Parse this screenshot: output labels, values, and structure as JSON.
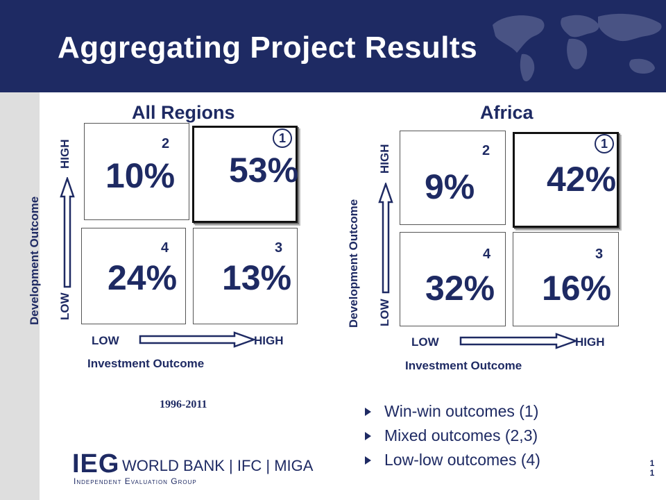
{
  "header": {
    "title": "Aggregating Project Results"
  },
  "panels": {
    "all_regions": {
      "title": "All Regions",
      "boxes": {
        "top_left": {
          "num": "2",
          "pct": "10%"
        },
        "top_right": {
          "circle": "1",
          "pct": "53%"
        },
        "bottom_left": {
          "num": "4",
          "pct": "24%"
        },
        "bottom_right": {
          "num": "3",
          "pct": "13%"
        }
      },
      "y_axis": {
        "title": "Development Outcome",
        "low": "LOW",
        "high": "HIGH"
      },
      "x_axis": {
        "title": "Investment Outcome",
        "low": "LOW",
        "high": "HIGH"
      },
      "years": "1996-2011"
    },
    "africa": {
      "title": "Africa",
      "boxes": {
        "top_left": {
          "num": "2",
          "pct": "9%"
        },
        "top_right": {
          "circle": "1",
          "pct": "42%"
        },
        "bottom_left": {
          "num": "4",
          "pct": "32%"
        },
        "bottom_right": {
          "num": "3",
          "pct": "16%"
        }
      },
      "y_axis": {
        "title": "Development Outcome",
        "low": "LOW",
        "high": "HIGH"
      },
      "x_axis": {
        "title": "Investment Outcome",
        "low": "LOW",
        "high": "HIGH"
      }
    }
  },
  "bullets": [
    "Win-win outcomes (1)",
    "Mixed outcomes (2,3)",
    "Low-low outcomes (4)"
  ],
  "logo": {
    "ieg": "IEG",
    "orgs": "WORLD BANK  |  IFC  |  MIGA",
    "sub": "Independent Evaluation Group"
  },
  "page_number": "11",
  "colors": {
    "header": "#1e2a63",
    "text": "#1e2a63",
    "sidebar": "#dedede"
  },
  "icons": {
    "header_decoration": "world-map-icon",
    "bullet": "triangle-bullet-icon"
  }
}
